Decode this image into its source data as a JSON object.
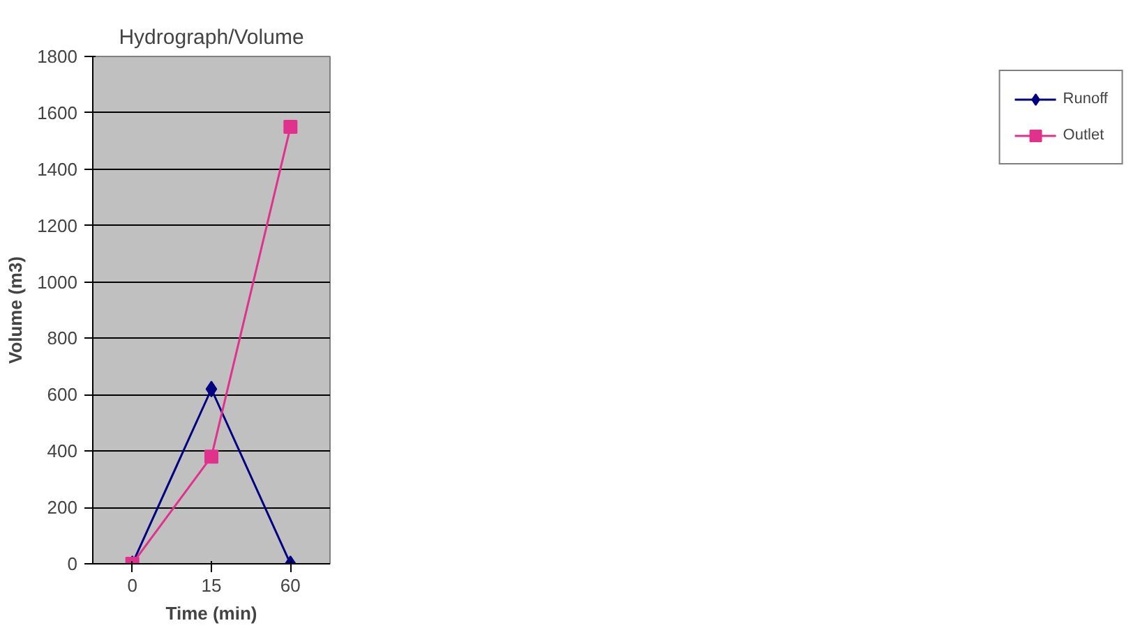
{
  "chart_data": {
    "type": "line",
    "title": "Hydrograph/Volume",
    "xlabel": "Time (min)",
    "ylabel": "Volume (m3)",
    "categories": [
      "0",
      "15",
      "60"
    ],
    "series": [
      {
        "name": "Runoff",
        "color": "#000080",
        "marker": "diamond",
        "values": [
          0,
          620,
          0
        ]
      },
      {
        "name": "Outlet",
        "color": "#e0318c",
        "marker": "square",
        "values": [
          0,
          380,
          1550
        ]
      }
    ],
    "ylim": [
      0,
      1800
    ],
    "yticks": [
      0,
      200,
      400,
      600,
      800,
      1000,
      1200,
      1400,
      1600,
      1800
    ],
    "grid": "y",
    "legend": "right",
    "line_style": "solid"
  }
}
